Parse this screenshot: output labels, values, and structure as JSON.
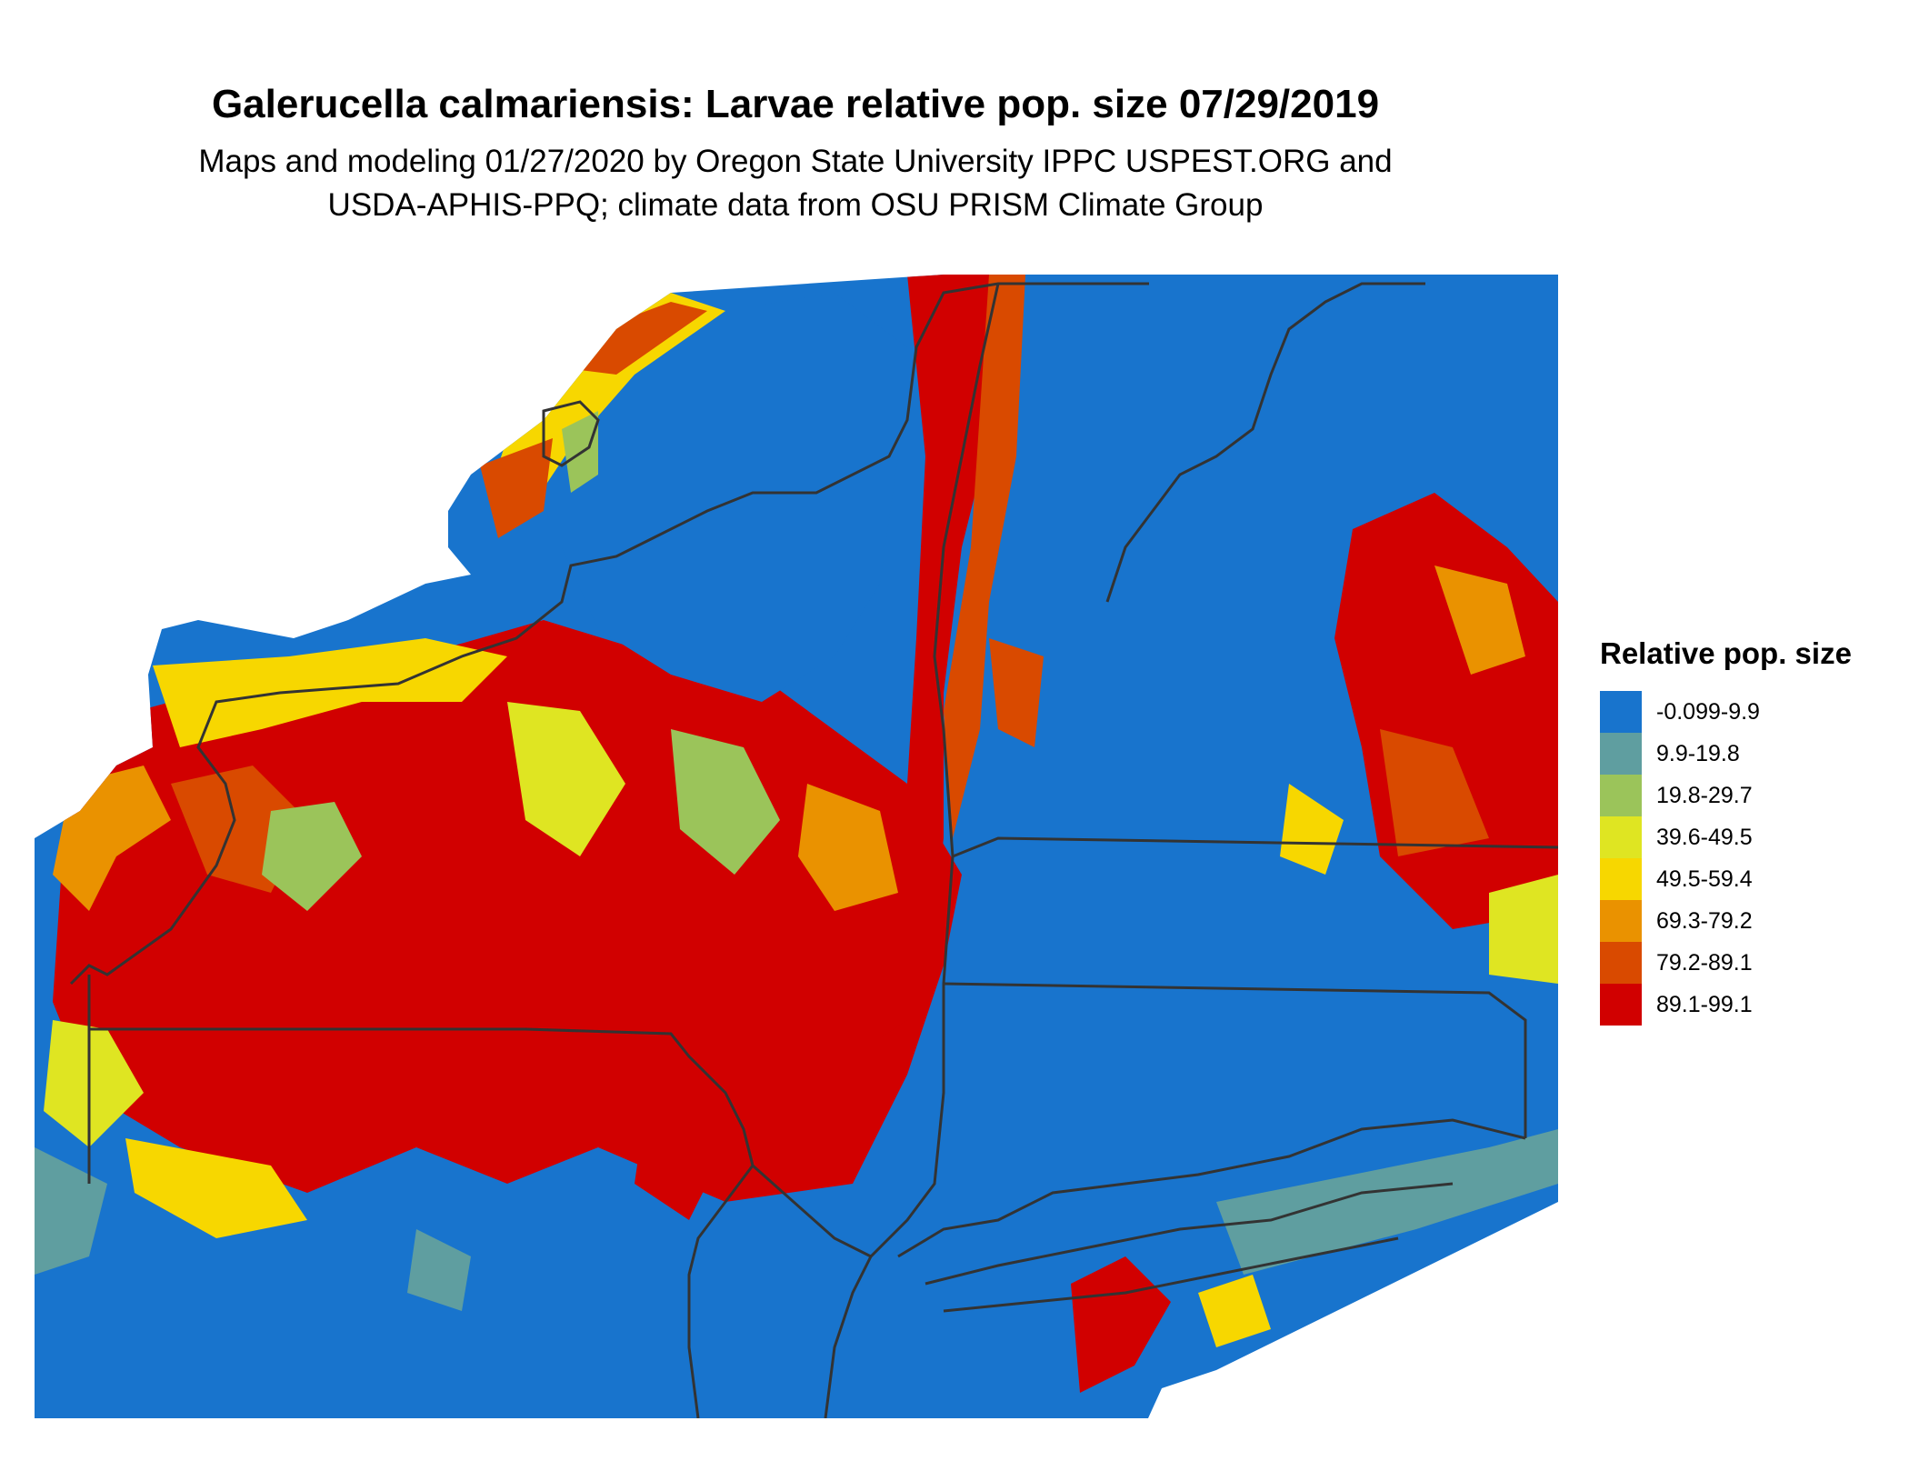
{
  "map": {
    "title": "Galerucella calmariensis: Larvae relative pop. size 07/29/2019",
    "subtitle_line1": "Maps and modeling 01/27/2020 by Oregon State University IPPC USPEST.ORG and",
    "subtitle_line2": "USDA-APHIS-PPQ; climate data from OSU PRISM Climate Group",
    "region": "New York and surrounding states",
    "variable": "Relative pop. size"
  },
  "legend": {
    "title": "Relative pop. size",
    "classes": [
      {
        "label": "-0.099-9.9",
        "color": "#1874cd"
      },
      {
        "label": "9.9-19.8",
        "color": "#5f9ea0"
      },
      {
        "label": "19.8-29.7",
        "color": "#9bc45a"
      },
      {
        "label": "39.6-49.5",
        "color": "#dfe522"
      },
      {
        "label": "49.5-59.4",
        "color": "#f7d700"
      },
      {
        "label": "69.3-79.2",
        "color": "#ea9200"
      },
      {
        "label": "79.2-89.1",
        "color": "#d94a00"
      },
      {
        "label": "89.1-99.1",
        "color": "#d10000"
      }
    ]
  },
  "colors": {
    "water_low": "#1874cd",
    "border": "#333333",
    "background": "#ffffff"
  }
}
